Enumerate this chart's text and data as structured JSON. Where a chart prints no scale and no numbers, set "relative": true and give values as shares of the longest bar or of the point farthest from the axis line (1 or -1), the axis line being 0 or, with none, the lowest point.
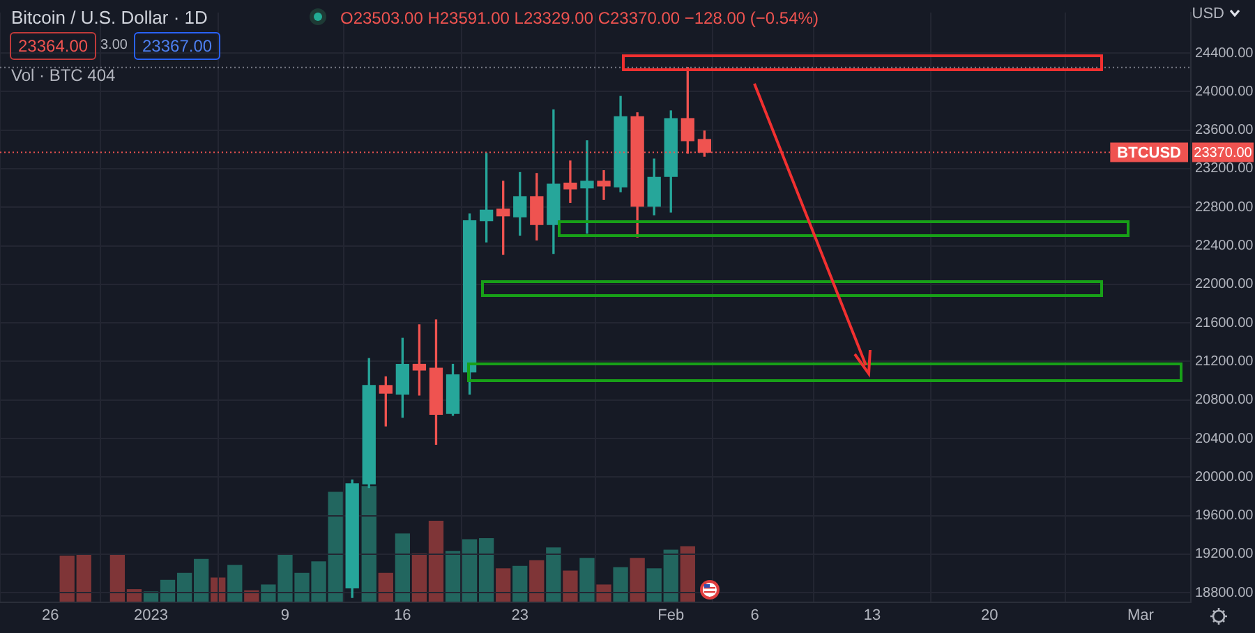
{
  "chart_data": [
    {
      "type": "candlestick",
      "title": "Bitcoin / U.S. Dollar · 1D",
      "ylabel": "USD",
      "annotations": [
        "O23503.00 H23591.00 L23329.00 C23370.00 −128.00 (−0.54%)",
        "23364.00",
        "3.00",
        "23367.00",
        "Vol · BTC 404",
        {
          "text": "23370.00",
          "y": 23370
        }
      ],
      "x": [
        "2023-01-13",
        "2023-01-14",
        "2023-01-15",
        "2023-01-16",
        "2023-01-17",
        "2023-01-18",
        "2023-01-19",
        "2023-01-20",
        "2023-01-21",
        "2023-01-22",
        "2023-01-23",
        "2023-01-24",
        "2023-01-25",
        "2023-01-26",
        "2023-01-27",
        "2023-01-28",
        "2023-01-29",
        "2023-01-30",
        "2023-01-31",
        "2023-02-01",
        "2023-02-02",
        "2023-02-03"
      ],
      "ohlc": [
        [
          18850,
          19970,
          18750,
          19930
        ],
        [
          19930,
          21230,
          19890,
          20950
        ],
        [
          20950,
          21040,
          20530,
          20870
        ],
        [
          20860,
          21440,
          20620,
          21170
        ],
        [
          21170,
          21580,
          20850,
          21110
        ],
        [
          21130,
          21630,
          20340,
          20650
        ],
        [
          20660,
          21170,
          20640,
          21060
        ],
        [
          21090,
          22730,
          20860,
          22660
        ],
        [
          22660,
          23360,
          22440,
          22770
        ],
        [
          22780,
          23070,
          22310,
          22710
        ],
        [
          22700,
          23160,
          22510,
          22910
        ],
        [
          22910,
          23150,
          22460,
          22620
        ],
        [
          22620,
          23810,
          22320,
          23040
        ],
        [
          23050,
          23280,
          22850,
          22990
        ],
        [
          23000,
          23490,
          22530,
          23070
        ],
        [
          23070,
          23180,
          22880,
          23020
        ],
        [
          23010,
          23950,
          22960,
          23740
        ],
        [
          23740,
          23780,
          22490,
          22810
        ],
        [
          22810,
          23300,
          22720,
          23110
        ],
        [
          23120,
          23800,
          22750,
          23720
        ],
        [
          23720,
          24250,
          23360,
          23490
        ],
        [
          23503,
          23591,
          23329,
          23370
        ]
      ],
      "colors": [
        "#26a69a",
        "#26a69a",
        "#ef5350",
        "#26a69a",
        "#ef5350",
        "#ef5350",
        "#26a69a",
        "#26a69a",
        "#26a69a",
        "#ef5350",
        "#26a69a",
        "#ef5350",
        "#26a69a",
        "#ef5350",
        "#26a69a",
        "#ef5350",
        "#26a69a",
        "#ef5350",
        "#26a69a",
        "#26a69a",
        "#ef5350",
        "#ef5350"
      ],
      "xlim": [
        "2022-12-23",
        "2023-03-04"
      ],
      "xticks": [
        {
          "value": "2022-12-26",
          "label": "26"
        },
        {
          "value": "2023-01-01",
          "label": "2023"
        },
        {
          "value": "2023-01-09",
          "label": "9"
        },
        {
          "value": "2023-01-16",
          "label": "16"
        },
        {
          "value": "2023-01-23",
          "label": "23"
        },
        {
          "value": "2023-02-01",
          "label": "Feb"
        },
        {
          "value": "2023-02-06",
          "label": "6"
        },
        {
          "value": "2023-02-13",
          "label": "13"
        },
        {
          "value": "2023-02-20",
          "label": "20"
        },
        {
          "value": "2023-03-01",
          "label": "Mar"
        }
      ],
      "ylim": [
        18700,
        24820
      ],
      "yticks": [
        {
          "value": 18800,
          "label": "18800.00"
        },
        {
          "value": 19200,
          "label": "19200.00"
        },
        {
          "value": 19600,
          "label": "19600.00"
        },
        {
          "value": 20000,
          "label": "20000.00"
        },
        {
          "value": 20400,
          "label": "20400.00"
        },
        {
          "value": 20800,
          "label": "20800.00"
        },
        {
          "value": 21200,
          "label": "21200.00"
        },
        {
          "value": 21600,
          "label": "21600.00"
        },
        {
          "value": 22000,
          "label": "22000.00"
        },
        {
          "value": 22400,
          "label": "22400.00"
        },
        {
          "value": 22800,
          "label": "22800.00"
        },
        {
          "value": 23200,
          "label": "23200.00"
        },
        {
          "value": 23600,
          "label": "23600.00"
        },
        {
          "value": 24000,
          "label": "24000.00"
        },
        {
          "value": 24400,
          "label": "24400.00"
        }
      ],
      "ref_lines": [
        {
          "axis": "y",
          "value": 23370,
          "label": "BTCUSD",
          "color": "#ef5350",
          "line_style": "dotted"
        },
        {
          "axis": "y",
          "value": 24250,
          "color": "#787b86",
          "line_style": "dotted"
        }
      ],
      "grid": true
    },
    {
      "type": "bar",
      "relative": true,
      "xlim": [
        "2022-12-23",
        "2023-03-04"
      ],
      "x": [
        "2022-12-27",
        "2022-12-28",
        "2022-12-29",
        "2022-12-30",
        "2022-12-31",
        "2023-01-01",
        "2023-01-02",
        "2023-01-03",
        "2023-01-04",
        "2023-01-05",
        "2023-01-06",
        "2023-01-07",
        "2023-01-08",
        "2023-01-09",
        "2023-01-10",
        "2023-01-11",
        "2023-01-12",
        "2023-01-13",
        "2023-01-14",
        "2023-01-15",
        "2023-01-16",
        "2023-01-17",
        "2023-01-18",
        "2023-01-19",
        "2023-01-20",
        "2023-01-21",
        "2023-01-22",
        "2023-01-23",
        "2023-01-24",
        "2023-01-25",
        "2023-01-26",
        "2023-01-27",
        "2023-01-28",
        "2023-01-29",
        "2023-01-30",
        "2023-01-31",
        "2023-02-01",
        "2023-02-02"
      ],
      "values": [
        0.4,
        0.41,
        null,
        0.41,
        0.11,
        0.09,
        0.19,
        0.25,
        0.37,
        0.21,
        0.32,
        0.1,
        0.15,
        0.41,
        0.25,
        0.35,
        0.95,
        null,
        1,
        0.25,
        0.59,
        0.42,
        0.7,
        0.44,
        0.54,
        0.55,
        0.29,
        0.31,
        0.36,
        0.47,
        0.27,
        0.38,
        0.15,
        0.3,
        0.38,
        0.29,
        0.45,
        0.48
      ],
      "colors": [
        "#7f3537",
        "#7f3537",
        "#22665f",
        "#7f3537",
        "#7f3537",
        "#22665f",
        "#22665f",
        "#22665f",
        "#22665f",
        "#7f3537",
        "#22665f",
        "#7f3537",
        "#22665f",
        "#22665f",
        "#22665f",
        "#22665f",
        "#22665f",
        "#22665f",
        "#22665f",
        "#7f3537",
        "#22665f",
        "#7f3537",
        "#7f3537",
        "#22665f",
        "#22665f",
        "#22665f",
        "#7f3537",
        "#22665f",
        "#7f3537",
        "#22665f",
        "#7f3537",
        "#22665f",
        "#7f3537",
        "#22665f",
        "#7f3537",
        "#22665f",
        "#22665f",
        "#7f3537"
      ]
    }
  ]
}
